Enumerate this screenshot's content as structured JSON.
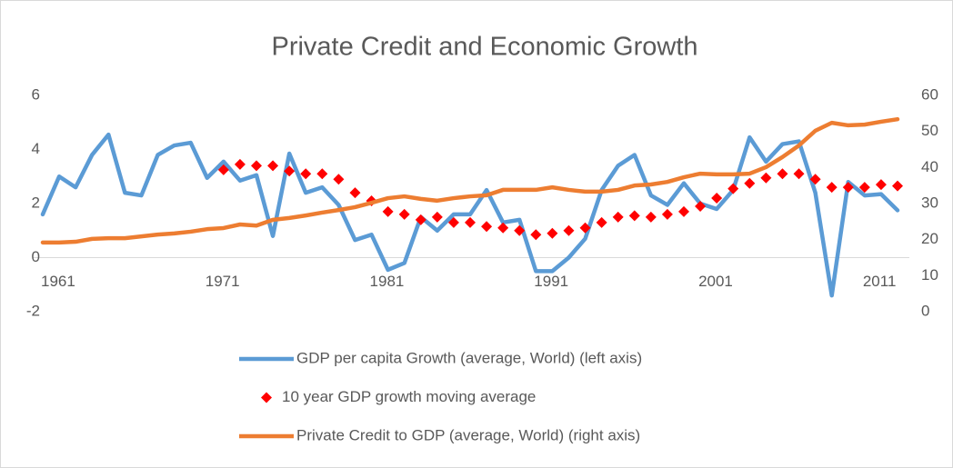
{
  "chart_data": {
    "type": "line",
    "title": "Private Credit and Economic Growth",
    "x": [
      1961,
      1962,
      1963,
      1964,
      1965,
      1966,
      1967,
      1968,
      1969,
      1970,
      1971,
      1972,
      1973,
      1974,
      1975,
      1976,
      1977,
      1978,
      1979,
      1980,
      1981,
      1982,
      1983,
      1984,
      1985,
      1986,
      1987,
      1988,
      1989,
      1990,
      1991,
      1992,
      1993,
      1994,
      1995,
      1996,
      1997,
      1998,
      1999,
      2000,
      2001,
      2002,
      2003,
      2004,
      2005,
      2006,
      2007,
      2008,
      2009,
      2010,
      2011,
      2012,
      2013
    ],
    "xlim": [
      1961,
      2013
    ],
    "xticks": [
      1961,
      1971,
      1981,
      1991,
      2001,
      2011
    ],
    "ylim": [
      -2,
      6
    ],
    "yticks": [
      -2,
      0,
      2,
      4,
      6
    ],
    "y2lim": [
      0,
      60
    ],
    "y2ticks": [
      0,
      10,
      20,
      30,
      40,
      50,
      60
    ],
    "series": [
      {
        "name": "GDP per capita Growth (average, World) (left axis)",
        "color": "#5b9bd5",
        "style": "line",
        "values": [
          1.6,
          3.0,
          2.6,
          3.8,
          4.55,
          2.4,
          2.3,
          3.8,
          4.15,
          4.25,
          2.95,
          3.55,
          2.85,
          3.05,
          0.8,
          3.85,
          2.4,
          2.6,
          1.95,
          0.65,
          0.85,
          -0.45,
          -0.2,
          1.5,
          1.0,
          1.6,
          1.6,
          2.5,
          1.3,
          1.4,
          -0.5,
          -0.5,
          0.0,
          0.7,
          2.5,
          3.4,
          3.8,
          2.3,
          1.95,
          2.75,
          2.0,
          1.8,
          2.5,
          4.45,
          3.55,
          4.2,
          4.3,
          2.4,
          -1.4,
          2.8,
          2.3,
          2.35,
          1.75
        ]
      },
      {
        "name": "10 year GDP growth moving average",
        "color": "#ff0000",
        "style": "marker",
        "values": [
          null,
          null,
          null,
          null,
          null,
          null,
          null,
          null,
          null,
          null,
          null,
          3.25,
          3.45,
          3.4,
          3.4,
          3.2,
          3.1,
          3.1,
          2.9,
          2.4,
          2.1,
          1.7,
          1.6,
          1.4,
          1.5,
          1.3,
          1.3,
          1.15,
          1.1,
          1.0,
          0.85,
          0.9,
          1.0,
          1.1,
          1.3,
          1.5,
          1.55,
          1.5,
          1.6,
          1.7,
          1.9,
          2.2,
          2.55,
          2.75,
          2.95,
          3.1,
          3.1,
          2.9,
          2.6,
          2.6,
          2.6,
          2.7,
          2.65
        ]
      },
      {
        "name": "Private Credit to GDP (average, World) (right axis)",
        "color": "#ed7d31",
        "style": "line",
        "axis": "y2",
        "values": [
          19.2,
          19.2,
          19.4,
          20.2,
          20.4,
          20.4,
          20.9,
          21.4,
          21.7,
          22.2,
          22.9,
          23.2,
          24.2,
          23.9,
          25.5,
          26.0,
          26.7,
          27.5,
          28.2,
          29.0,
          30.2,
          31.5,
          32.0,
          31.3,
          30.8,
          31.5,
          32.0,
          32.3,
          33.8,
          33.8,
          33.8,
          34.5,
          33.8,
          33.3,
          33.3,
          33.8,
          35.0,
          35.3,
          36.0,
          37.3,
          38.3,
          38.1,
          38.1,
          38.3,
          40.1,
          42.9,
          46.1,
          50.2,
          52.4,
          51.7,
          51.9,
          52.7,
          53.4
        ]
      }
    ]
  }
}
